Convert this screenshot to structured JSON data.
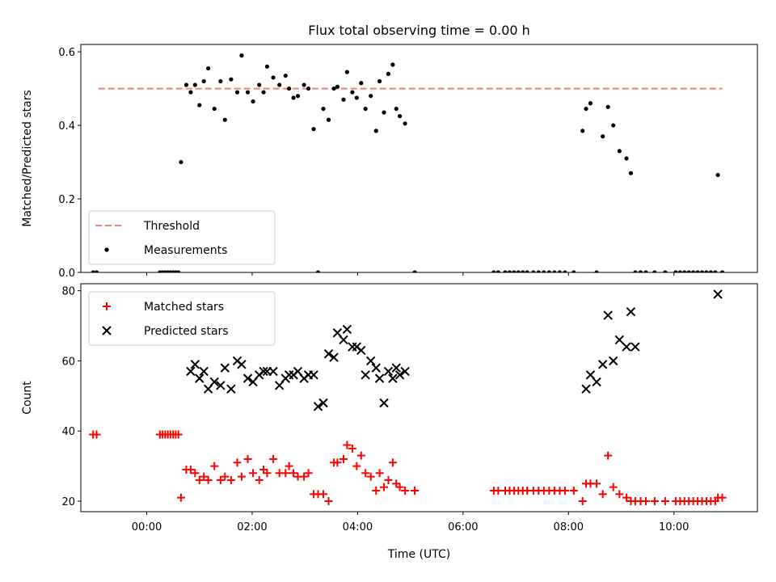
{
  "chart_data": [
    {
      "type": "scatter",
      "title": "Flux total observing time = 0.00 h",
      "xlabel": "",
      "ylabel": "Matched/Predicted stars",
      "xlim": [
        "-01:15",
        "11:35"
      ],
      "ylim": [
        0,
        0.62
      ],
      "yticks": [
        "0.0",
        "0.2",
        "0.4",
        "0.6"
      ],
      "legend": "lower-left",
      "grid": false,
      "series": [
        {
          "name": "Threshold",
          "kind": "line",
          "style": "dashed",
          "color": "#f08080",
          "x": [
            "-00:55",
            "10:55"
          ],
          "y": [
            0.5,
            0.5
          ]
        },
        {
          "name": "Measurements",
          "kind": "scatter",
          "color": "#000000",
          "x": [
            "-01:01",
            "-00:57",
            "00:15",
            "00:18",
            "00:21",
            "00:24",
            "00:27",
            "00:30",
            "00:33",
            "00:36",
            "00:39",
            "00:45",
            "00:50",
            "00:55",
            "01:00",
            "01:05",
            "01:10",
            "01:17",
            "01:24",
            "01:29",
            "01:36",
            "01:43",
            "01:48",
            "01:55",
            "02:01",
            "02:08",
            "02:13",
            "02:17",
            "02:24",
            "02:31",
            "02:38",
            "02:42",
            "02:47",
            "02:52",
            "02:59",
            "03:04",
            "03:10",
            "03:15",
            "03:21",
            "03:27",
            "03:33",
            "03:37",
            "03:44",
            "03:48",
            "03:54",
            "03:59",
            "04:04",
            "04:09",
            "04:15",
            "04:21",
            "04:25",
            "04:30",
            "04:35",
            "04:40",
            "04:44",
            "04:48",
            "04:54",
            "05:05",
            "06:35",
            "06:40",
            "06:48",
            "06:53",
            "06:58",
            "07:03",
            "07:08",
            "07:13",
            "07:20",
            "07:26",
            "07:32",
            "07:38",
            "07:44",
            "07:50",
            "07:56",
            "08:06",
            "08:16",
            "08:20",
            "08:25",
            "08:32",
            "08:39",
            "08:45",
            "08:51",
            "08:58",
            "09:06",
            "09:11",
            "09:16",
            "09:22",
            "09:28",
            "09:38",
            "09:50",
            "10:02",
            "10:07",
            "10:12",
            "10:17",
            "10:22",
            "10:27",
            "10:32",
            "10:37",
            "10:42",
            "10:47",
            "10:50",
            "10:55"
          ],
          "y": [
            0,
            0,
            0,
            0,
            0,
            0,
            0,
            0,
            0,
            0,
            0.3,
            0.51,
            0.49,
            0.51,
            0.455,
            0.52,
            0.555,
            0.445,
            0.52,
            0.415,
            0.525,
            0.49,
            0.59,
            0.49,
            0.465,
            0.51,
            0.49,
            0.56,
            0.53,
            0.51,
            0.535,
            0.5,
            0.475,
            0.48,
            0.51,
            0.5,
            0.39,
            0,
            0.445,
            0.415,
            0.5,
            0.505,
            0.47,
            0.545,
            0.49,
            0.475,
            0.515,
            0.445,
            0.48,
            0.385,
            0.52,
            0.435,
            0.54,
            0.565,
            0.445,
            0.425,
            0.405,
            0,
            0,
            0,
            0,
            0,
            0,
            0,
            0,
            0,
            0,
            0,
            0,
            0,
            0,
            0,
            0,
            0,
            0.385,
            0.445,
            0.46,
            0,
            0.37,
            0.45,
            0.4,
            0.33,
            0.31,
            0.27,
            0,
            0,
            0,
            0,
            0,
            0,
            0,
            0,
            0,
            0,
            0,
            0,
            0,
            0,
            0,
            0.265,
            0
          ]
        }
      ]
    },
    {
      "type": "scatter",
      "title": "",
      "xlabel": "Time (UTC)",
      "ylabel": "Count",
      "xlim": [
        "-01:15",
        "11:35"
      ],
      "ylim": [
        17,
        82
      ],
      "yticks": [
        "20",
        "40",
        "60",
        "80"
      ],
      "xticks": [
        "00:00",
        "02:00",
        "04:00",
        "06:00",
        "08:00",
        "10:00"
      ],
      "legend": "upper-left",
      "grid": false,
      "series": [
        {
          "name": "Matched stars",
          "marker": "plus",
          "color": "#ff0000",
          "x": [
            "-01:01",
            "-00:57",
            "00:15",
            "00:18",
            "00:21",
            "00:24",
            "00:27",
            "00:30",
            "00:33",
            "00:36",
            "00:39",
            "00:45",
            "00:50",
            "00:55",
            "01:00",
            "01:05",
            "01:10",
            "01:17",
            "01:24",
            "01:29",
            "01:36",
            "01:43",
            "01:48",
            "01:55",
            "02:01",
            "02:08",
            "02:13",
            "02:17",
            "02:24",
            "02:31",
            "02:38",
            "02:42",
            "02:47",
            "02:52",
            "02:59",
            "03:04",
            "03:10",
            "03:15",
            "03:21",
            "03:27",
            "03:33",
            "03:37",
            "03:44",
            "03:48",
            "03:54",
            "03:59",
            "04:04",
            "04:09",
            "04:15",
            "04:21",
            "04:25",
            "04:30",
            "04:35",
            "04:40",
            "04:44",
            "04:48",
            "04:54",
            "05:05",
            "06:35",
            "06:40",
            "06:48",
            "06:53",
            "06:58",
            "07:03",
            "07:08",
            "07:13",
            "07:20",
            "07:26",
            "07:32",
            "07:38",
            "07:44",
            "07:50",
            "07:56",
            "08:06",
            "08:16",
            "08:20",
            "08:25",
            "08:32",
            "08:39",
            "08:45",
            "08:51",
            "08:58",
            "09:06",
            "09:11",
            "09:16",
            "09:22",
            "09:28",
            "09:38",
            "09:50",
            "10:02",
            "10:07",
            "10:12",
            "10:17",
            "10:22",
            "10:27",
            "10:32",
            "10:37",
            "10:42",
            "10:47",
            "10:50",
            "10:55"
          ],
          "y": [
            39,
            39,
            39,
            39,
            39,
            39,
            39,
            39,
            39,
            39,
            21,
            29,
            29,
            28,
            26,
            27,
            26,
            30,
            26,
            27,
            26,
            31,
            27,
            32,
            28,
            26,
            29,
            28,
            32,
            28,
            28,
            30,
            28,
            27,
            27,
            28,
            22,
            22,
            22,
            20,
            31,
            31,
            32,
            36,
            35,
            30,
            33,
            28,
            27,
            23,
            28,
            24,
            26,
            31,
            25,
            24,
            23,
            23,
            23,
            23,
            23,
            23,
            23,
            23,
            23,
            23,
            23,
            23,
            23,
            23,
            23,
            23,
            23,
            23,
            20,
            25,
            25,
            25,
            22,
            33,
            24,
            22,
            21,
            20,
            20,
            20,
            20,
            20,
            20,
            20,
            20,
            20,
            20,
            20,
            20,
            20,
            20,
            20,
            20,
            21,
            21
          ]
        },
        {
          "name": "Predicted stars",
          "marker": "x",
          "color": "#000000",
          "x": [
            "00:50",
            "00:55",
            "01:00",
            "01:05",
            "01:10",
            "01:17",
            "01:24",
            "01:29",
            "01:36",
            "01:43",
            "01:48",
            "01:55",
            "02:01",
            "02:08",
            "02:13",
            "02:17",
            "02:24",
            "02:31",
            "02:38",
            "02:42",
            "02:47",
            "02:52",
            "02:59",
            "03:04",
            "03:10",
            "03:15",
            "03:21",
            "03:27",
            "03:33",
            "03:37",
            "03:44",
            "03:48",
            "03:54",
            "03:59",
            "04:04",
            "04:09",
            "04:15",
            "04:21",
            "04:25",
            "04:30",
            "04:35",
            "04:40",
            "04:44",
            "04:48",
            "04:54",
            "08:20",
            "08:25",
            "08:32",
            "08:39",
            "08:45",
            "08:51",
            "08:58",
            "09:06",
            "09:11",
            "09:16",
            "10:50"
          ],
          "y": [
            57,
            59,
            55,
            57,
            52,
            54,
            53,
            58,
            52,
            60,
            59,
            55,
            54,
            56,
            57,
            57,
            57,
            53,
            55,
            56,
            56,
            57,
            55,
            56,
            56,
            47,
            48,
            62,
            61,
            68,
            66,
            69,
            64,
            64,
            63,
            56,
            60,
            58,
            55,
            48,
            57,
            55,
            58,
            56,
            57,
            52,
            56,
            54,
            59,
            73,
            60,
            66,
            64,
            74,
            64,
            79
          ]
        }
      ]
    }
  ]
}
